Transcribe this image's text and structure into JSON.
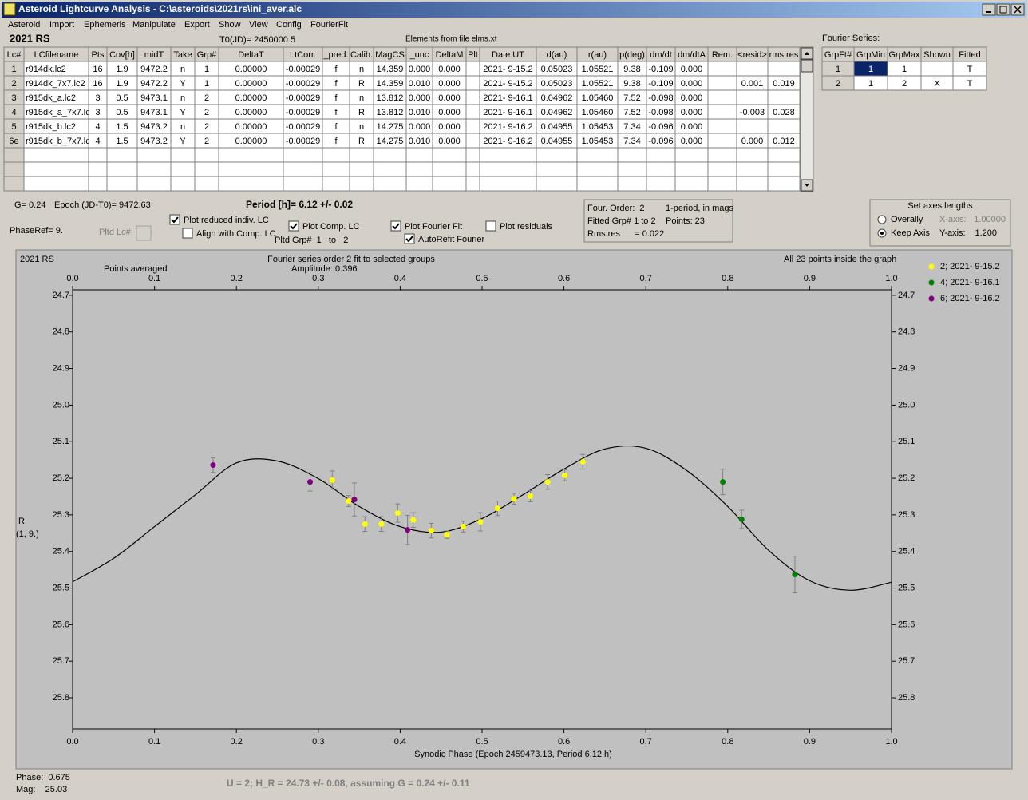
{
  "window": {
    "title": "Asteroid Lightcurve Analysis - C:\\asteroids\\2021rs\\ini_aver.alc",
    "menu": [
      "Asteroid",
      "Import",
      "Ephemeris",
      "Manipulate",
      "Export",
      "Show",
      "View",
      "Config",
      "FourierFit"
    ]
  },
  "header": {
    "object": "2021 RS",
    "t0": "T0(JD)= 2450000.5",
    "elements": "Elements from file elms.xt",
    "fourier_label": "Fourier Series:"
  },
  "lc_table": {
    "columns": [
      "Lc#",
      "LCfilename",
      "Pts",
      "Cov[h]",
      "midT",
      "Take",
      "Grp#",
      "DeltaT",
      "LtCorr.",
      "_pred.",
      "Calib.",
      "MagCS",
      "_unc",
      "DeltaM",
      "Plt",
      "Date UT",
      "d(au)",
      "r(au)",
      "p(deg)",
      "dm/dt",
      "dm/dtA",
      "Rem.",
      "<resid>",
      "rms res"
    ],
    "rows": [
      [
        "1",
        "r914dk.lc2",
        "16",
        "1.9",
        "9472.2",
        "n",
        "1",
        "0.00000",
        "-0.00029",
        "f",
        "n",
        "14.359",
        "0.000",
        "0.000",
        null,
        "2021- 9-15.2",
        "0.05023",
        "1.05521",
        "9.38",
        "-0.109",
        "0.000",
        null,
        null,
        null
      ],
      [
        "2",
        "r914dk_7x7.lc2",
        "16",
        "1.9",
        "9472.2",
        "Y",
        "1",
        "0.00000",
        "-0.00029",
        "f",
        "R",
        "14.359",
        "0.010",
        "0.000",
        null,
        "2021- 9-15.2",
        "0.05023",
        "1.05521",
        "9.38",
        "-0.109",
        "0.000",
        null,
        "0.001",
        "0.019"
      ],
      [
        "3",
        "r915dk_a.lc2",
        "3",
        "0.5",
        "9473.1",
        "n",
        "2",
        "0.00000",
        "-0.00029",
        "f",
        "n",
        "13.812",
        "0.000",
        "0.000",
        null,
        "2021- 9-16.1",
        "0.04962",
        "1.05460",
        "7.52",
        "-0.098",
        "0.000",
        null,
        null,
        null
      ],
      [
        "4",
        "r915dk_a_7x7.lc",
        "3",
        "0.5",
        "9473.1",
        "Y",
        "2",
        "0.00000",
        "-0.00029",
        "f",
        "R",
        "13.812",
        "0.010",
        "0.000",
        null,
        "2021- 9-16.1",
        "0.04962",
        "1.05460",
        "7.52",
        "-0.098",
        "0.000",
        null,
        "-0.003",
        "0.028"
      ],
      [
        "5",
        "r915dk_b.lc2",
        "4",
        "1.5",
        "9473.2",
        "n",
        "2",
        "0.00000",
        "-0.00029",
        "f",
        "n",
        "14.275",
        "0.000",
        "0.000",
        null,
        "2021- 9-16.2",
        "0.04955",
        "1.05453",
        "7.34",
        "-0.096",
        "0.000",
        null,
        null,
        null
      ],
      [
        "6e",
        "r915dk_b_7x7.lc",
        "4",
        "1.5",
        "9473.2",
        "Y",
        "2",
        "0.00000",
        "-0.00029",
        "f",
        "R",
        "14.275",
        "0.010",
        "0.000",
        null,
        "2021- 9-16.2",
        "0.04955",
        "1.05453",
        "7.34",
        "-0.096",
        "0.000",
        null,
        "0.000",
        "0.012"
      ]
    ]
  },
  "fourier_table": {
    "columns": [
      "GrpFt#",
      "GrpMin",
      "GrpMax",
      "Shown",
      "Fitted"
    ],
    "rows": [
      [
        "1",
        "1",
        "1",
        null,
        "T"
      ],
      [
        "2",
        "1",
        "2",
        "X",
        "T"
      ]
    ]
  },
  "info": {
    "g": "G= 0.24",
    "epoch": "Epoch (JD-T0)= 9472.63",
    "period": "Period [h]= 6.12 +/- 0.02",
    "phase_ref": "PhaseRef= 9.",
    "pltd_lc": "Pltd Lc#:",
    "pltd_grp": "Pltd Grp#  1   to   2"
  },
  "checkboxes": [
    {
      "label": "Plot reduced indiv. LC",
      "checked": true
    },
    {
      "label": "Align with Comp. LC",
      "checked": false
    },
    {
      "label": "Plot Comp. LC",
      "checked": true
    },
    {
      "label": "Plot Fourier Fit",
      "checked": true
    },
    {
      "label": "Plot residuals",
      "checked": false
    },
    {
      "label": "AutoRefit Fourier",
      "checked": true
    }
  ],
  "fit_box": [
    "Four. Order:  2",
    "1-period, in mags",
    "Fitted Grp# 1 to 2",
    "Points: 23",
    "Rms res      = 0.022"
  ],
  "axes_box": {
    "title": "Set axes lengths",
    "options": [
      {
        "label": "Overally",
        "selected": false
      },
      {
        "label": "Keep Axis",
        "selected": true
      }
    ],
    "x_axis": {
      "label": "X-axis:",
      "value": "1.00000"
    },
    "y_axis": {
      "label": "Y-axis:",
      "value": "1.200"
    }
  },
  "chart_data": {
    "type": "scatter",
    "title": "Fourier series order 2 fit to selected groups",
    "subtitle": "Amplitude: 0.396",
    "annotations": [
      "2021 RS",
      "Points averaged",
      "All 23 points inside the graph"
    ],
    "x_label": "Synodic Phase (Epoch 2459473.13, Period 6.12 h)",
    "y_label": [
      "R",
      "(1, 9.)"
    ],
    "xlim": [
      0,
      1
    ],
    "ylim": [
      25.885,
      24.685
    ],
    "xticks": [
      {
        "value": 0,
        "label": "0.0"
      },
      0.1,
      0.2,
      0.3,
      0.4,
      0.5,
      0.6,
      0.7,
      0.8,
      0.9,
      {
        "value": 1,
        "label": "1.0"
      }
    ],
    "yticks": [
      24.7,
      24.8,
      24.9,
      {
        "value": 25,
        "label": "25.0"
      },
      25.1,
      25.2,
      25.3,
      25.4,
      25.5,
      25.6,
      25.7,
      25.8
    ],
    "series": [
      {
        "name": "2; 2021- 9-15.2",
        "color": "#ffff00",
        "x": [
          0.317,
          0.337,
          0.357,
          0.377,
          0.397,
          0.416,
          0.438,
          0.457,
          0.477,
          0.498,
          0.519,
          0.539,
          0.559,
          0.58,
          0.601,
          0.623
        ],
        "values": [
          25.205,
          25.262,
          25.325,
          25.325,
          25.295,
          25.314,
          25.343,
          25.354,
          25.332,
          25.319,
          25.282,
          25.256,
          25.249,
          25.21,
          25.192,
          25.155
        ],
        "errors": [
          0.025,
          0.015,
          0.02,
          0.02,
          0.025,
          0.02,
          0.02,
          0.01,
          0.015,
          0.025,
          0.02,
          0.015,
          0.015,
          0.02,
          0.015,
          0.02
        ]
      },
      {
        "name": "4; 2021- 9-16.1",
        "color": "#008000",
        "x": [
          0.794,
          0.817,
          0.882
        ],
        "values": [
          25.21,
          25.312,
          25.463
        ],
        "errors": [
          0.035,
          0.025,
          0.05
        ]
      },
      {
        "name": "6; 2021- 9-16.2",
        "color": "#800080",
        "x": [
          0.1715,
          0.29,
          0.344,
          0.409
        ],
        "values": [
          25.164,
          25.21,
          25.258,
          25.341
        ],
        "errors": [
          0.02,
          0.025,
          0.045,
          0.04
        ]
      }
    ],
    "fit": {
      "color": "#000000",
      "x": [
        0,
        0.05,
        0.1,
        0.15,
        0.2,
        0.25,
        0.3,
        0.35,
        0.4,
        0.45,
        0.5,
        0.55,
        0.6,
        0.65,
        0.7,
        0.75,
        0.8,
        0.85,
        0.9,
        0.95,
        1
      ],
      "values": [
        25.483,
        25.419,
        25.332,
        25.245,
        25.158,
        25.153,
        25.201,
        25.277,
        25.332,
        25.347,
        25.31,
        25.245,
        25.175,
        25.12,
        25.118,
        25.179,
        25.277,
        25.397,
        25.48,
        25.506,
        25.484
      ]
    }
  },
  "status": {
    "phase": "Phase:  0.675",
    "mag": "Mag:    25.03",
    "result": "U = 2; H_R = 24.73 +/- 0.08, assuming G = 0.24 +/- 0.11"
  }
}
